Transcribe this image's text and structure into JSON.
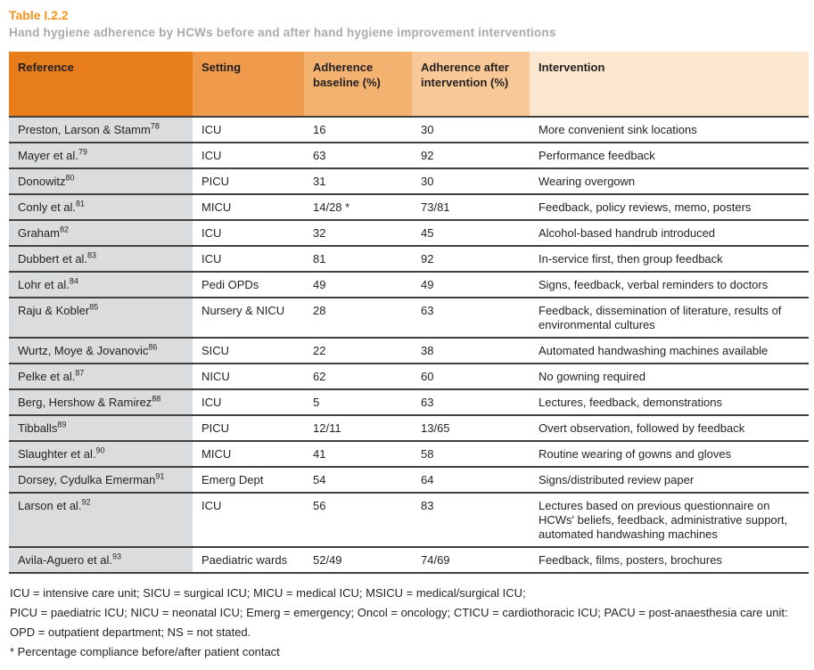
{
  "page": {
    "title": "Table I.2.2",
    "subtitle": "Hand hygiene adherence by HCWs before and after hand hygiene improvement interventions"
  },
  "colors": {
    "title_orange": "#F5921E",
    "subtitle_gray": "#A8AAAD",
    "header_reference": "#E87D1B",
    "header_setting": "#F09B4B",
    "header_baseline": "#F4B271",
    "header_after": "#F8C996",
    "header_intervention": "#FBE7CE",
    "reference_cell_gray": "#DBDCDD",
    "row_line": "#404040",
    "text": "#231F20"
  },
  "table": {
    "columns": [
      {
        "key": "reference",
        "label": "Reference"
      },
      {
        "key": "setting",
        "label": "Setting"
      },
      {
        "key": "baseline",
        "label": "Adherence baseline (%)"
      },
      {
        "key": "after",
        "label": "Adherence after intervention (%)"
      },
      {
        "key": "intervention",
        "label": "Intervention"
      }
    ],
    "rows": [
      {
        "reference": "Preston, Larson & Stamm",
        "sup": "78",
        "setting": "ICU",
        "baseline": "16",
        "after": "30",
        "intervention": "More convenient sink locations"
      },
      {
        "reference": "Mayer et al.",
        "sup": "79",
        "setting": "ICU",
        "baseline": "63",
        "after": "92",
        "intervention": "Performance feedback"
      },
      {
        "reference": "Donowitz",
        "sup": "80",
        "setting": "PICU",
        "baseline": "31",
        "after": "30",
        "intervention": "Wearing overgown"
      },
      {
        "reference": "Conly et al.",
        "sup": "81",
        "setting": "MICU",
        "baseline": "14/28 *",
        "after": "73/81",
        "intervention": "Feedback, policy reviews, memo, posters"
      },
      {
        "reference": "Graham",
        "sup": "82",
        "setting": "ICU",
        "baseline": "32",
        "after": "45",
        "intervention": "Alcohol-based handrub introduced"
      },
      {
        "reference": "Dubbert et al.",
        "sup": "83",
        "setting": "ICU",
        "baseline": "81",
        "after": "92",
        "intervention": "In-service first, then group feedback"
      },
      {
        "reference": "Lohr et al.",
        "sup": "84",
        "setting": "Pedi OPDs",
        "baseline": "49",
        "after": "49",
        "intervention": "Signs, feedback, verbal reminders to doctors"
      },
      {
        "reference": "Raju & Kobler",
        "sup": "85",
        "setting": "Nursery & NICU",
        "baseline": "28",
        "after": "63",
        "intervention": "Feedback, dissemination of literature, results of environmental cultures"
      },
      {
        "reference": "Wurtz, Moye & Jovanovic",
        "sup": "86",
        "setting": "SICU",
        "baseline": "22",
        "after": "38",
        "intervention": "Automated handwashing machines available"
      },
      {
        "reference": "Pelke et al.",
        "sup": "87",
        "setting": "NICU",
        "baseline": "62",
        "after": "60",
        "intervention": "No gowning required"
      },
      {
        "reference": "Berg, Hershow & Ramirez",
        "sup": "88",
        "setting": "ICU",
        "baseline": "5",
        "after": "63",
        "intervention": "Lectures, feedback, demonstrations"
      },
      {
        "reference": "Tibballs",
        "sup": "89",
        "setting": "PICU",
        "baseline": "12/11",
        "after": "13/65",
        "intervention": "Overt observation, followed by feedback"
      },
      {
        "reference": "Slaughter et al.",
        "sup": "90",
        "setting": "MICU",
        "baseline": "41",
        "after": "58",
        "intervention": "Routine wearing of gowns and gloves"
      },
      {
        "reference": "Dorsey, Cydulka Emerman",
        "sup": "91",
        "setting": "Emerg Dept",
        "baseline": "54",
        "after": "64",
        "intervention": "Signs/distributed review paper"
      },
      {
        "reference": "Larson et al.",
        "sup": "92",
        "setting": "ICU",
        "baseline": "56",
        "after": "83",
        "intervention": "Lectures based on previous questionnaire on HCWs' beliefs, feedback, administrative support, automated handwashing machines"
      },
      {
        "reference": "Avila-Aguero et al.",
        "sup": "93",
        "setting": "Paediatric wards",
        "baseline": "52/49",
        "after": "74/69",
        "intervention": "Feedback, films, posters, brochures"
      }
    ]
  },
  "footnotes": [
    "ICU = intensive care unit; SICU = surgical ICU; MICU = medical ICU; MSICU = medical/surgical ICU;",
    "PICU = paediatric ICU; NICU = neonatal ICU; Emerg = emergency; Oncol = oncology; CTICU = cardiothoracic ICU; PACU = post-anaesthesia care unit:",
    "OPD = outpatient department; NS = not stated.",
    "* Percentage compliance before/after patient contact"
  ]
}
